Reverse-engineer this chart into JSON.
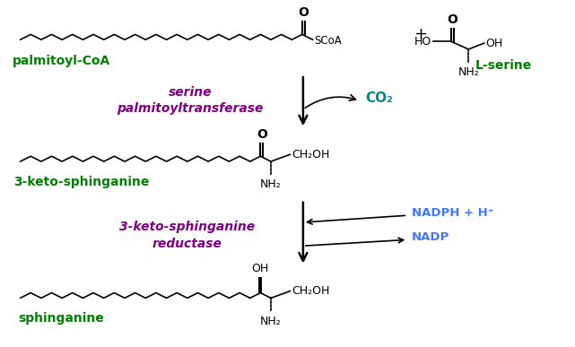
{
  "bg_color": "#ffffff",
  "colors": {
    "chain": "#000000",
    "label_green": "#008000",
    "label_purple": "#800080",
    "label_blue": "#4477ff",
    "label_teal": "#008888",
    "label_black": "#000000"
  },
  "enzyme1": "serine\npalmitoyltransferase",
  "enzyme2": "3-keto-sphinganine\nreductase",
  "label_palmitoyl": "palmitoyl-CoA",
  "label_ketosphinganine": "3-keto-sphinganine",
  "label_sphinganine": "sphinganine",
  "label_lserine": "L-serine",
  "label_co2": "CO₂",
  "label_nadph": "NADPH + H⁺",
  "label_nadp": "NADP"
}
